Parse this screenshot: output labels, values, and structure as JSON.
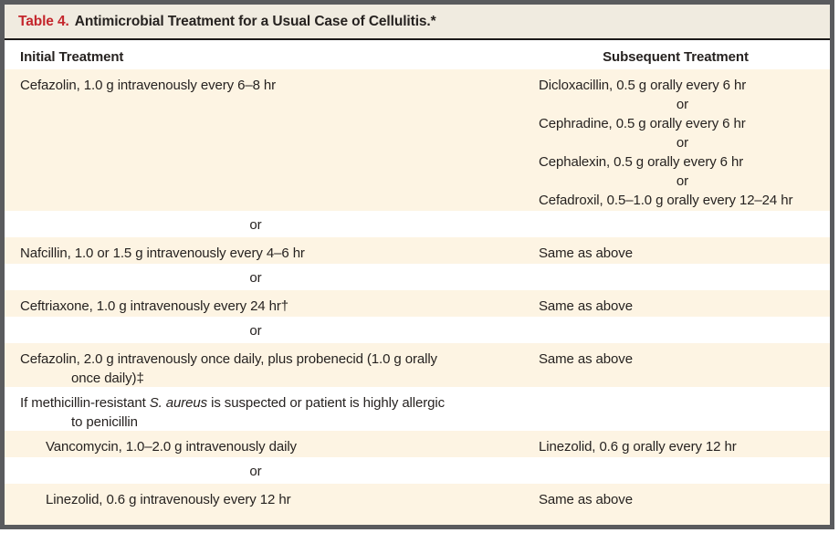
{
  "table": {
    "label": "Table 4.",
    "title": "Antimicrobial Treatment for a Usual Case of Cellulitis.*",
    "columns": [
      "Initial Treatment",
      "Subsequent Treatment"
    ],
    "or_separator": "or",
    "rows": [
      {
        "initial": "Cefazolin, 1.0 g intravenously every 6–8 hr",
        "subsequent_lines": [
          "Dicloxacillin, 0.5 g orally every 6 hr",
          "or",
          "Cephradine, 0.5 g orally every 6 hr",
          "or",
          "Cephalexin, 0.5 g orally every 6 hr",
          "or",
          "Cefadroxil, 0.5–1.0 g orally every 12–24 hr"
        ]
      },
      {
        "initial": "Nafcillin, 1.0 or 1.5 g intravenously every 4–6 hr",
        "subsequent": "Same as above"
      },
      {
        "initial": "Ceftriaxone, 1.0 g intravenously every 24 hr†",
        "subsequent": "Same as above"
      },
      {
        "initial_line1": "Cefazolin, 2.0 g intravenously once daily, plus probenecid (1.0 g orally",
        "initial_line2": "once daily)‡",
        "subsequent": "Same as above"
      },
      {
        "heading_prefix": "If methicillin-resistant ",
        "heading_italic": "S. aureus",
        "heading_suffix": " is suspected or patient is highly allergic",
        "heading_line2": "to penicillin"
      },
      {
        "initial": "Vancomycin, 1.0–2.0 g intravenously daily",
        "subsequent": "Linezolid, 0.6 g orally every 12 hr"
      },
      {
        "initial": "Linezolid, 0.6 g intravenously every 12 hr",
        "subsequent": "Same as above"
      }
    ],
    "colors": {
      "accent_red": "#c4262c",
      "row_cream": "#fdf4e3",
      "title_bar": "#f0ebe0",
      "frame_border": "#5a5b5e"
    }
  }
}
